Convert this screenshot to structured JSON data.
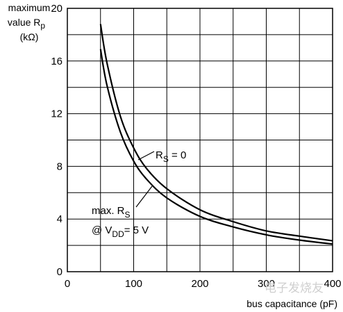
{
  "chart_data": {
    "type": "line",
    "ylabel_lines": [
      "maximum",
      "value R",
      "(kΩ)"
    ],
    "ylabel_subscript": "p",
    "xlabel": "bus capacitance (pF)",
    "xlim": [
      0,
      400
    ],
    "ylim": [
      0,
      20
    ],
    "x_ticks": [
      0,
      100,
      200,
      300,
      400
    ],
    "y_ticks": [
      0,
      4,
      8,
      12,
      16,
      20
    ],
    "grid": true,
    "series": [
      {
        "x": [
          50,
          60,
          80,
          100,
          120,
          150,
          200,
          250,
          300,
          350,
          400
        ],
        "y": [
          18.8,
          15.8,
          11.8,
          9.4,
          7.8,
          6.3,
          4.7,
          3.8,
          3.1,
          2.7,
          2.35
        ]
      },
      {
        "x": [
          50,
          60,
          80,
          100,
          120,
          150,
          200,
          250,
          300,
          350,
          400
        ],
        "y": [
          16.9,
          14.1,
          10.6,
          8.4,
          7.0,
          5.6,
          4.2,
          3.4,
          2.8,
          2.4,
          2.1
        ]
      }
    ],
    "annotations": [
      {
        "main": "R",
        "sub": "S",
        "rest": " = 0",
        "target_x": 100,
        "target_y": 8.6
      },
      {
        "line1_main": "max. R",
        "line1_sub": "S",
        "line2_main": "@ V",
        "line2_sub": "DD",
        "line2_rest": "= 5 V",
        "target_x": 115,
        "target_y": 6.6
      }
    ]
  },
  "watermark": "电子发烧友"
}
